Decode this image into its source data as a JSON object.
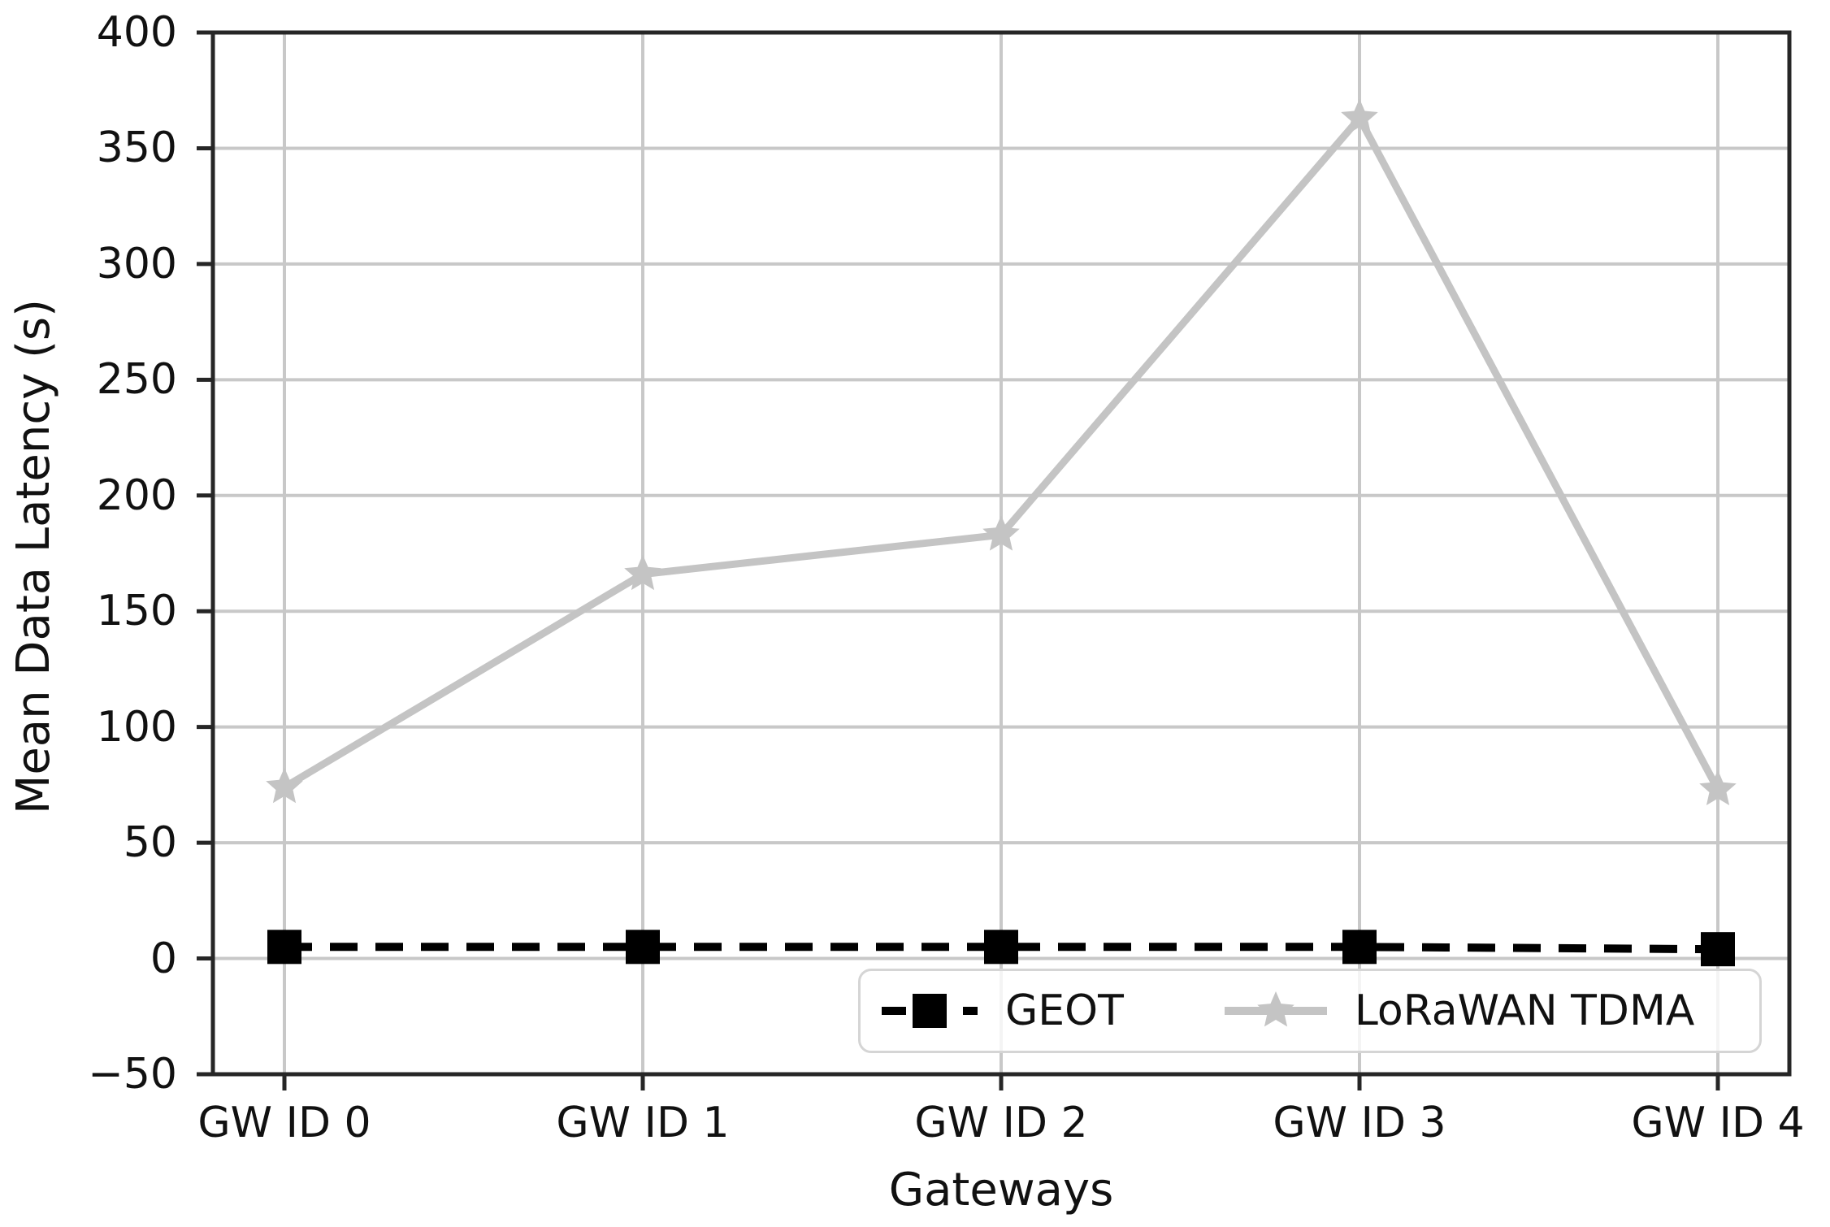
{
  "figure": {
    "background": "#ffffff"
  },
  "chart_data": {
    "type": "line",
    "title": "",
    "xlabel": "Gateways",
    "ylabel": "Mean Data Latency (s)",
    "categories": [
      "GW ID 0",
      "GW ID 1",
      "GW ID 2",
      "GW ID 3",
      "GW ID 4"
    ],
    "series": [
      {
        "name": "GEOT",
        "values": [
          5,
          5,
          5,
          5,
          4
        ],
        "color": "#000000",
        "line_style": "dashed",
        "marker": "square"
      },
      {
        "name": "LoRaWAN TDMA",
        "values": [
          74,
          166,
          183,
          363,
          73
        ],
        "color": "#c4c4c4",
        "line_style": "solid",
        "marker": "star"
      }
    ],
    "ylim": [
      -50,
      400
    ],
    "yticks": {
      "values": [
        -50,
        0,
        50,
        100,
        150,
        200,
        250,
        300,
        350,
        400
      ],
      "labels": [
        "−50",
        "0",
        "50",
        "100",
        "150",
        "200",
        "250",
        "300",
        "350",
        "400"
      ]
    },
    "grid": true,
    "grid_color": "#c8c8c8",
    "axis_color": "#262626",
    "text_color": "#111111",
    "legend_position": "lower right",
    "legend_border_color": "#d5d5d5"
  }
}
